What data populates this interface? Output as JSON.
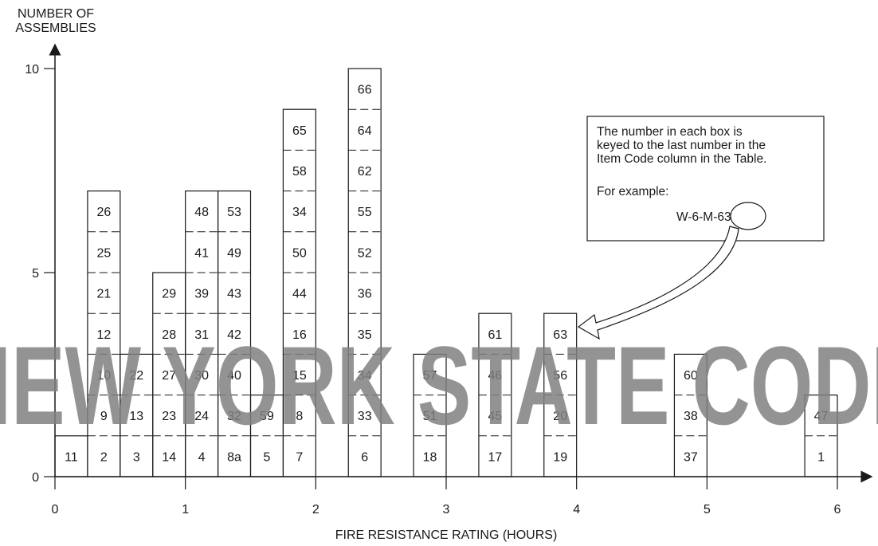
{
  "chart_data": {
    "type": "bar",
    "ylabel": "NUMBER OF\nASSEMBLIES",
    "xlabel": "FIRE RESISTANCE RATING (HOURS)",
    "xlim": [
      0,
      6
    ],
    "ylim": [
      0,
      10
    ],
    "x_ticks": [
      0,
      1,
      2,
      3,
      4,
      5,
      6
    ],
    "y_ticks": [
      0,
      5,
      10
    ],
    "bin_width": 0.25,
    "grid": false,
    "bars": [
      {
        "x": 0.0,
        "count": 1,
        "items": [
          "11"
        ]
      },
      {
        "x": 0.25,
        "count": 7,
        "items": [
          "2",
          "9",
          "10",
          "12",
          "21",
          "25",
          "26"
        ]
      },
      {
        "x": 0.5,
        "count": 3,
        "items": [
          "3",
          "13",
          "22"
        ]
      },
      {
        "x": 0.75,
        "count": 5,
        "items": [
          "14",
          "23",
          "27",
          "28",
          "29"
        ]
      },
      {
        "x": 1.0,
        "count": 7,
        "items": [
          "4",
          "24",
          "30",
          "31",
          "39",
          "41",
          "48"
        ]
      },
      {
        "x": 1.25,
        "count": 7,
        "items": [
          "8a",
          "32",
          "40",
          "42",
          "43",
          "49",
          "53"
        ]
      },
      {
        "x": 1.5,
        "count": 2,
        "items": [
          "5",
          "59"
        ]
      },
      {
        "x": 1.75,
        "count": 9,
        "items": [
          "7",
          "8",
          "15",
          "16",
          "44",
          "50",
          "34",
          "58",
          "65"
        ]
      },
      {
        "x": 2.25,
        "count": 10,
        "items": [
          "6",
          "33",
          "34",
          "35",
          "36",
          "52",
          "55",
          "62",
          "64",
          "66"
        ]
      },
      {
        "x": 2.75,
        "count": 3,
        "items": [
          "18",
          "51",
          "57"
        ]
      },
      {
        "x": 3.25,
        "count": 4,
        "items": [
          "17",
          "45",
          "46",
          "61"
        ]
      },
      {
        "x": 3.75,
        "count": 4,
        "items": [
          "19",
          "20",
          "56",
          "63"
        ]
      },
      {
        "x": 4.75,
        "count": 3,
        "items": [
          "37",
          "38",
          "60"
        ]
      },
      {
        "x": 5.75,
        "count": 2,
        "items": [
          "1",
          "47"
        ]
      }
    ],
    "annotation": {
      "lines": [
        "The number in each box is",
        "keyed to the last number in the",
        "Item Code column in the Table."
      ],
      "example_label": "For example:",
      "example_code": "W-6-M-63",
      "highlight": "63"
    }
  },
  "watermark": "NEW YORK STATE CODE",
  "colors": {
    "ink": "#1a1a1a",
    "watermark": "#808080"
  }
}
